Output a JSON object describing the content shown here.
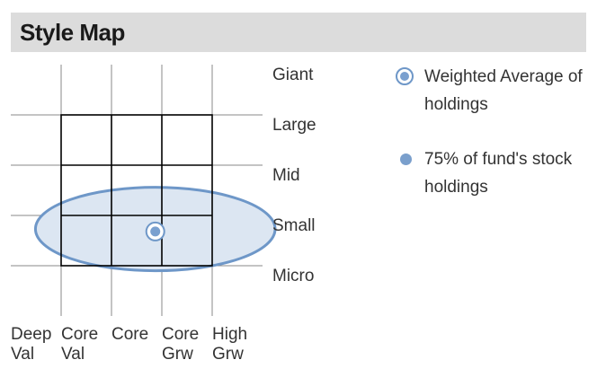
{
  "header": {
    "title": "Style Map"
  },
  "legend": {
    "weighted_average": "Weighted Average of holdings",
    "stock_holdings": "75% of fund's stock holdings"
  },
  "colors": {
    "header_bg": "#dcdcdc",
    "ellipse_fill": "#dce6f2",
    "ellipse_stroke": "#6e97c8",
    "marker": "#7aa0cf",
    "grid_bold": "#000000",
    "grid_light": "#888888"
  },
  "chart_data": {
    "type": "scatter",
    "title": "Style Map",
    "x_categories": [
      [
        "Deep",
        "Val"
      ],
      [
        "Core",
        "Val"
      ],
      [
        "Core",
        ""
      ],
      [
        "Core",
        "Grw"
      ],
      [
        "High",
        "Grw"
      ]
    ],
    "y_categories": [
      "Giant",
      "Large",
      "Mid",
      "Small",
      "Micro"
    ],
    "xlim": [
      0,
      5
    ],
    "ylim": [
      0,
      5
    ],
    "weighted_average": {
      "x": 2.87,
      "y": 1.68
    },
    "holdings_ellipse": {
      "center_x": 2.87,
      "center_y": 1.73,
      "radius_x": 2.38,
      "radius_y": 0.83
    },
    "grid": true
  }
}
